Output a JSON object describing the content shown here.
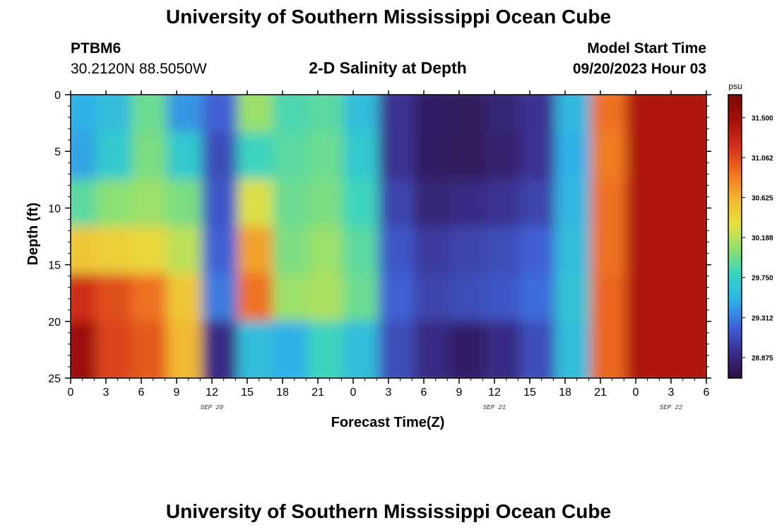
{
  "page": {
    "title_top": "University of Southern Mississippi Ocean Cube",
    "title_bottom": "University of Southern Mississippi Ocean Cube",
    "station": "PTBM6",
    "location": "30.2120N  88.5050W",
    "start_label": "Model Start Time",
    "start_time": "09/20/2023 Hour 03"
  },
  "colors": {
    "scale": [
      "#2b1040",
      "#3a2d8c",
      "#3f63d8",
      "#2fb0e8",
      "#35d3c5",
      "#8ee070",
      "#e8e040",
      "#f2b430",
      "#ef7020",
      "#d0301a",
      "#a11008",
      "#7a0a04"
    ]
  },
  "chart_data": {
    "type": "heatmap",
    "title": "2-D Salinity at Depth",
    "xlabel": "Forecast Time(Z)",
    "ylabel": "Depth (ft)",
    "xlim": [
      0,
      54
    ],
    "ylim": [
      0,
      25
    ],
    "x_ticks": [
      0,
      3,
      6,
      9,
      12,
      15,
      18,
      21,
      24,
      27,
      30,
      33,
      36,
      39,
      42,
      45,
      48,
      51,
      54
    ],
    "x_tick_labels": [
      "0",
      "3",
      "6",
      "9",
      "12",
      "15",
      "18",
      "21",
      "0",
      "3",
      "6",
      "9",
      "12",
      "15",
      "18",
      "21",
      "0",
      "3",
      "6"
    ],
    "y_ticks": [
      0,
      5,
      10,
      15,
      20,
      25
    ],
    "y_tick_labels": [
      "0",
      "5",
      "10",
      "15",
      "20",
      "25"
    ],
    "date_labels": [
      {
        "x": 12,
        "text": "SEP 20"
      },
      {
        "x": 36,
        "text": "SEP 21"
      },
      {
        "x": 51,
        "text": "SEP 22"
      }
    ],
    "colorbar": {
      "unit": "psu",
      "min": 28.65,
      "max": 31.75,
      "ticks": [
        31.5,
        31.062,
        30.625,
        30.188,
        29.75,
        29.312,
        28.875
      ],
      "tick_labels": [
        "31.500",
        "31.062",
        "30.625",
        "30.188",
        "29.750",
        "29.312",
        "28.875"
      ]
    },
    "grid_columns": 18,
    "grid_rows": 6,
    "values": [
      [
        29.5,
        29.6,
        29.95,
        29.4,
        29.2,
        30.1,
        29.85,
        29.9,
        29.6,
        28.95,
        28.8,
        28.75,
        28.85,
        28.95,
        29.55,
        30.9,
        31.4,
        31.4
      ],
      [
        29.45,
        29.7,
        30.0,
        29.7,
        29.1,
        29.8,
        29.9,
        29.95,
        29.7,
        28.95,
        28.78,
        28.75,
        28.82,
        28.95,
        29.5,
        30.85,
        31.4,
        31.4
      ],
      [
        29.9,
        30.05,
        30.1,
        30.0,
        29.15,
        30.3,
        29.95,
        30.0,
        29.8,
        29.05,
        28.85,
        28.9,
        28.95,
        29.05,
        29.55,
        30.9,
        31.4,
        31.4
      ],
      [
        30.5,
        30.45,
        30.4,
        30.2,
        29.2,
        30.7,
        30.0,
        30.1,
        29.9,
        29.15,
        29.0,
        29.05,
        29.1,
        29.2,
        29.6,
        30.9,
        31.4,
        31.4
      ],
      [
        31.2,
        31.05,
        30.9,
        30.5,
        29.3,
        30.9,
        30.1,
        30.15,
        29.95,
        29.2,
        29.05,
        29.1,
        29.15,
        29.25,
        29.65,
        30.95,
        31.4,
        31.4
      ],
      [
        31.5,
        31.1,
        31.0,
        30.6,
        28.9,
        29.6,
        29.5,
        29.8,
        29.6,
        29.1,
        28.9,
        28.8,
        28.9,
        29.1,
        29.6,
        30.95,
        31.4,
        31.4
      ]
    ]
  }
}
